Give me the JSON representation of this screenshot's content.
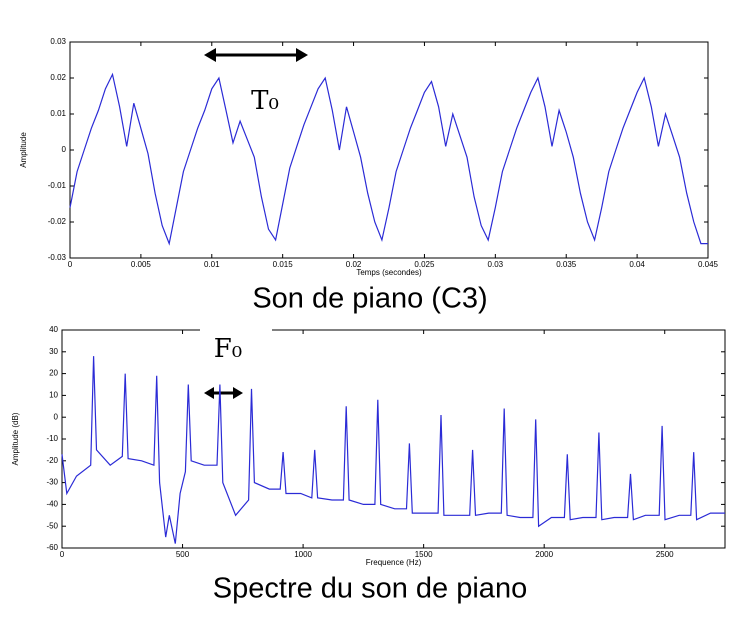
{
  "chart_data": [
    {
      "type": "line",
      "title": "Son de piano (C3)",
      "xlabel": "Temps (secondes)",
      "ylabel": "Amplitude",
      "annotation": "T₀",
      "color": "#2b2bd6",
      "x": [
        0,
        0.0005,
        0.001,
        0.0015,
        0.002,
        0.0025,
        0.003,
        0.0035,
        0.004,
        0.0045,
        0.005,
        0.0055,
        0.006,
        0.0065,
        0.007,
        0.0075,
        0.008,
        0.0085,
        0.009,
        0.0095,
        0.01,
        0.0105,
        0.011,
        0.0115,
        0.012,
        0.0125,
        0.013,
        0.0135,
        0.014,
        0.0145,
        0.015,
        0.0155,
        0.016,
        0.0165,
        0.017,
        0.0175,
        0.018,
        0.0185,
        0.019,
        0.0195,
        0.02,
        0.0205,
        0.021,
        0.0215,
        0.022,
        0.0225,
        0.023,
        0.0235,
        0.024,
        0.0245,
        0.025,
        0.0255,
        0.026,
        0.0265,
        0.027,
        0.0275,
        0.028,
        0.0285,
        0.029,
        0.0295,
        0.03,
        0.0305,
        0.031,
        0.0315,
        0.032,
        0.0325,
        0.033,
        0.0335,
        0.034,
        0.0345,
        0.035,
        0.0355,
        0.036,
        0.0365,
        0.037,
        0.0375,
        0.038,
        0.0385,
        0.039,
        0.0395,
        0.04,
        0.0405,
        0.041,
        0.0415,
        0.042,
        0.0425,
        0.043,
        0.0435,
        0.044,
        0.0445,
        0.045
      ],
      "values": [
        -0.016,
        -0.006,
        0,
        0.006,
        0.011,
        0.017,
        0.021,
        0.012,
        0.001,
        0.013,
        0.006,
        -0.001,
        -0.012,
        -0.021,
        -0.026,
        -0.016,
        -0.006,
        0,
        0.006,
        0.011,
        0.017,
        0.02,
        0.011,
        0.002,
        0.008,
        0.003,
        -0.002,
        -0.013,
        -0.022,
        -0.025,
        -0.015,
        -0.005,
        0.001,
        0.007,
        0.012,
        0.017,
        0.02,
        0.011,
        0,
        0.012,
        0.005,
        -0.002,
        -0.012,
        -0.02,
        -0.025,
        -0.016,
        -0.006,
        0,
        0.006,
        0.011,
        0.016,
        0.019,
        0.012,
        0.001,
        0.01,
        0.004,
        -0.002,
        -0.013,
        -0.021,
        -0.025,
        -0.016,
        -0.006,
        0,
        0.006,
        0.011,
        0.016,
        0.02,
        0.012,
        0.001,
        0.011,
        0.005,
        -0.002,
        -0.012,
        -0.02,
        -0.025,
        -0.016,
        -0.006,
        0,
        0.006,
        0.011,
        0.016,
        0.02,
        0.012,
        0.001,
        0.01,
        0.004,
        -0.002,
        -0.012,
        -0.02,
        -0.026,
        -0.026
      ],
      "xlim": [
        0,
        0.045
      ],
      "xticks": [
        0,
        0.005,
        0.01,
        0.015,
        0.02,
        0.025,
        0.03,
        0.035,
        0.04,
        0.045
      ],
      "ylim": [
        -0.03,
        0.03
      ],
      "yticks": [
        -0.03,
        -0.02,
        -0.01,
        0,
        0.01,
        0.02,
        0.03
      ]
    },
    {
      "type": "line",
      "title": "Spectre du son de piano",
      "xlabel": "Frequence (Hz)",
      "ylabel": "Amplitude (dB)",
      "annotation": "F₀",
      "color": "#2b2bd6",
      "x": [
        0,
        20,
        60,
        119,
        131,
        143,
        200,
        250,
        262,
        274,
        330,
        381,
        393,
        405,
        430,
        445,
        470,
        490,
        512,
        524,
        536,
        590,
        643,
        655,
        667,
        720,
        774,
        786,
        798,
        860,
        905,
        917,
        929,
        990,
        1036,
        1048,
        1060,
        1120,
        1167,
        1179,
        1191,
        1250,
        1298,
        1310,
        1322,
        1380,
        1429,
        1441,
        1453,
        1510,
        1560,
        1572,
        1584,
        1640,
        1691,
        1703,
        1715,
        1770,
        1822,
        1834,
        1846,
        1900,
        1953,
        1965,
        1977,
        2030,
        2084,
        2096,
        2108,
        2160,
        2215,
        2227,
        2239,
        2290,
        2346,
        2358,
        2370,
        2420,
        2477,
        2489,
        2501,
        2560,
        2608,
        2620,
        2632,
        2690,
        2750
      ],
      "values": [
        -17,
        -35,
        -27,
        -22,
        28,
        -15,
        -22,
        -18,
        20,
        -19,
        -20,
        -22,
        19,
        -30,
        -55,
        -45,
        -58,
        -35,
        -25,
        15,
        -20,
        -22,
        -22,
        15,
        -30,
        -45,
        -38,
        13,
        -30,
        -33,
        -33,
        -16,
        -35,
        -35,
        -37,
        -15,
        -37,
        -38,
        -38,
        5,
        -38,
        -40,
        -40,
        8,
        -40,
        -42,
        -42,
        -12,
        -44,
        -44,
        -44,
        1,
        -45,
        -45,
        -45,
        -15,
        -45,
        -44,
        -44,
        4,
        -45,
        -46,
        -46,
        -1,
        -50,
        -46,
        -46,
        -17,
        -47,
        -46,
        -46,
        -7,
        -47,
        -46,
        -46,
        -26,
        -47,
        -45,
        -45,
        -4,
        -47,
        -45,
        -45,
        -16,
        -47,
        -44,
        -44
      ],
      "xlim": [
        0,
        2750
      ],
      "xticks": [
        0,
        500,
        1000,
        1500,
        2000,
        2500
      ],
      "ylim": [
        -60,
        40
      ],
      "yticks": [
        -60,
        -50,
        -40,
        -30,
        -20,
        -10,
        0,
        10,
        20,
        30,
        40
      ]
    }
  ]
}
